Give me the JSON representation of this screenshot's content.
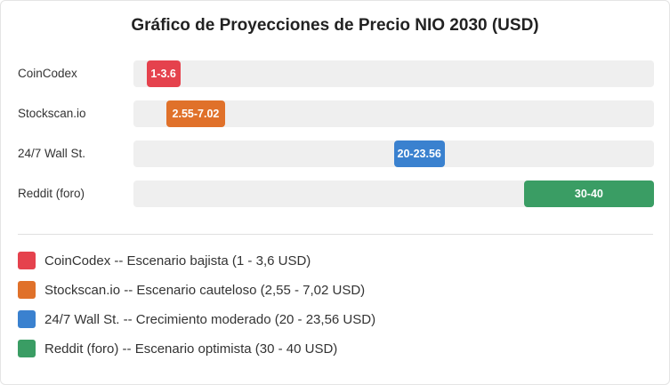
{
  "title": "Gráfico de Proyecciones de Precio NIO 2030 (USD)",
  "chart_data": {
    "type": "bar",
    "orientation": "horizontal",
    "subtype": "range",
    "title": "Gráfico de Proyecciones de Precio NIO 2030 (USD)",
    "xlim": [
      0,
      40
    ],
    "grid": false,
    "legend_position": "bottom",
    "categories": [
      "CoinCodex",
      "Stockscan.io",
      "24/7 Wall St.",
      "Reddit (foro)"
    ],
    "series": [
      {
        "ranges": [
          [
            1,
            3.6
          ],
          [
            2.55,
            7.02
          ],
          [
            20,
            23.56
          ],
          [
            30,
            40
          ]
        ],
        "labels": [
          "1-3.6",
          "2.55-7.02",
          "20-23.56",
          "30-40"
        ],
        "colors": [
          "#e5424d",
          "#e0712a",
          "#3a81cf",
          "#3a9d64"
        ]
      }
    ]
  },
  "legend": [
    {
      "text": "CoinCodex -- Escenario bajista (1 - 3,6 USD)",
      "color": "#e5424d"
    },
    {
      "text": "Stockscan.io -- Escenario cauteloso (2,55 - 7,02 USD)",
      "color": "#e0712a"
    },
    {
      "text": "24/7 Wall St. -- Crecimiento moderado (20 - 23,56 USD)",
      "color": "#3a81cf"
    },
    {
      "text": "Reddit (foro) -- Escenario optimista (30 - 40 USD)",
      "color": "#3a9d64"
    }
  ]
}
